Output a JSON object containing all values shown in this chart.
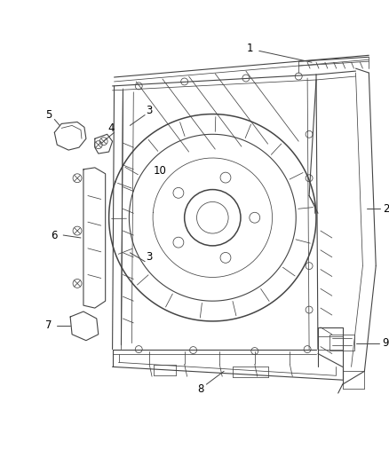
{
  "background_color": "#ffffff",
  "line_color": "#444444",
  "label_color": "#000000",
  "lw_main": 1.1,
  "lw_med": 0.8,
  "lw_thin": 0.55,
  "font_size": 8.5
}
